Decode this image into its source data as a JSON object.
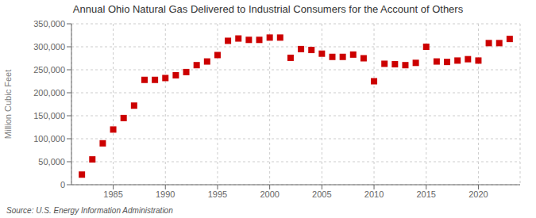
{
  "chart_data": {
    "type": "scatter",
    "title": "Annual Ohio Natural Gas Delivered to Industrial Consumers for the Account of Others",
    "y_label": "Million Cubic Feet",
    "annotations": [
      "Source: U.S. Energy Information Administration"
    ],
    "x": [
      1982,
      1983,
      1984,
      1985,
      1986,
      1987,
      1988,
      1989,
      1990,
      1991,
      1992,
      1993,
      1994,
      1995,
      1996,
      1997,
      1998,
      1999,
      2000,
      2001,
      2002,
      2003,
      2004,
      2005,
      2006,
      2007,
      2008,
      2009,
      2010,
      2011,
      2012,
      2013,
      2014,
      2015,
      2016,
      2017,
      2018,
      2019,
      2020,
      2021,
      2022,
      2023
    ],
    "values": [
      22000,
      55000,
      90000,
      120000,
      145000,
      172000,
      228000,
      228000,
      232000,
      238000,
      245000,
      260000,
      268000,
      282000,
      313000,
      318000,
      315000,
      315000,
      320000,
      320000,
      276000,
      295000,
      293000,
      285000,
      278000,
      278000,
      283000,
      275000,
      225000,
      263000,
      262000,
      260000,
      265000,
      300000,
      268000,
      267000,
      270000,
      273000,
      270000,
      308000,
      308000,
      317000
    ],
    "color": "#cc0000",
    "marker": "square",
    "xlim": [
      1981,
      2024
    ],
    "xticks": [
      1985,
      1990,
      1995,
      2000,
      2005,
      2010,
      2015,
      2020
    ],
    "ylim": [
      0,
      350000
    ],
    "yticks": [
      0,
      {
        "value": 50000,
        "label": "50,000"
      },
      {
        "value": 100000,
        "label": "100,000"
      },
      {
        "value": 150000,
        "label": "150,000"
      },
      {
        "value": 200000,
        "label": "200,000"
      },
      {
        "value": 250000,
        "label": "250,000"
      },
      {
        "value": 300000,
        "label": "300,000"
      },
      {
        "value": 350000,
        "label": "350,000"
      }
    ],
    "grid": true
  }
}
